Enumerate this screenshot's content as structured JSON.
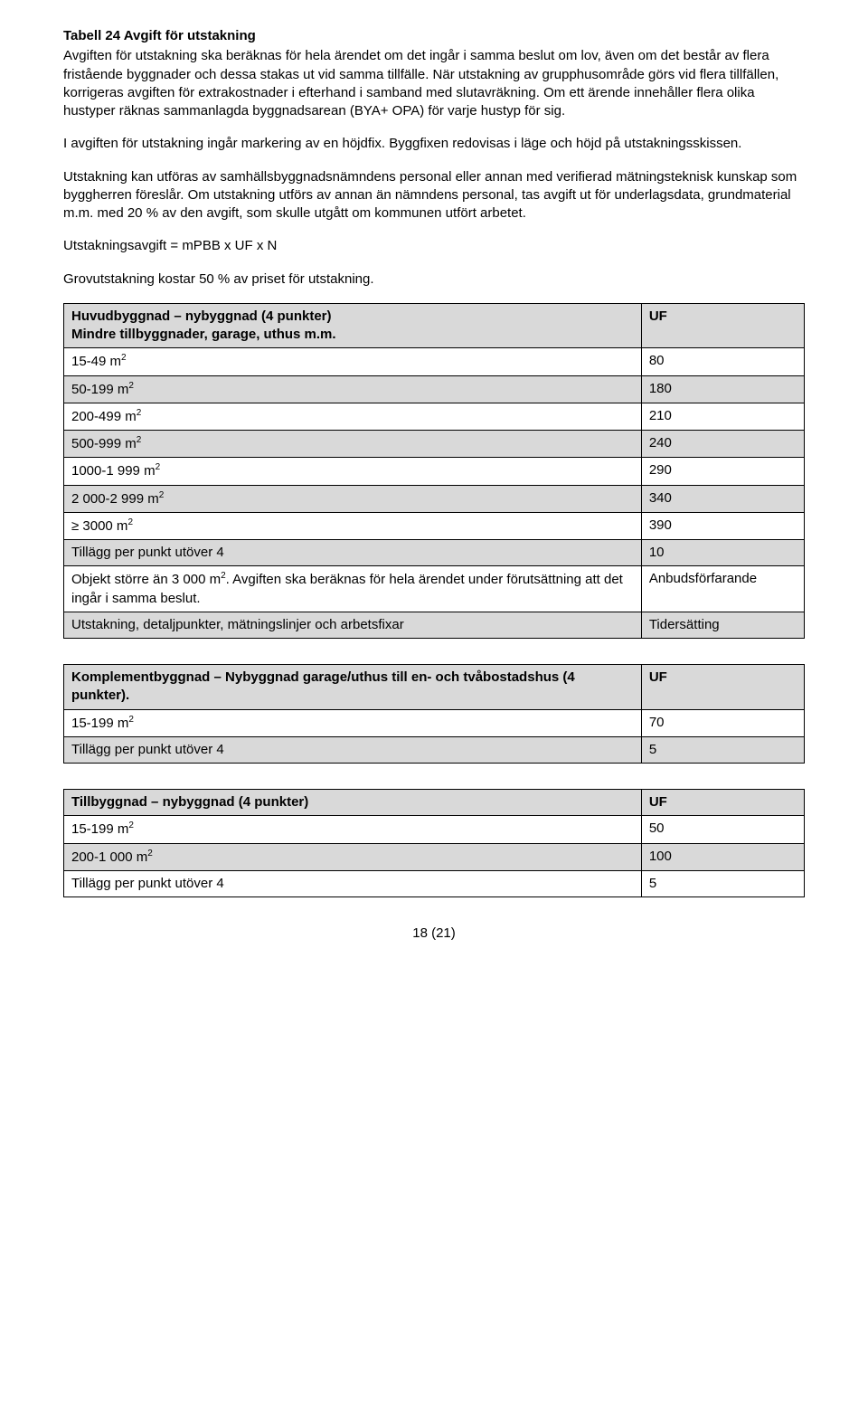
{
  "title": "Tabell 24 Avgift för utstakning",
  "paras": {
    "p1": "Avgiften för utstakning ska beräknas för hela ärendet om det ingår i samma beslut om lov, även om det består av flera fristående byggnader och dessa stakas ut vid samma tillfälle. När utstakning av grupphusområde görs vid flera tillfällen, korrigeras avgiften för extrakostnader i efterhand i samband med slutavräkning. Om ett ärende innehåller flera olika hustyper räknas sammanlagda byggnadsarean (BYA+ OPA) för varje hustyp för sig.",
    "p2": "I avgiften för utstakning ingår markering av en höjdfix. Byggfixen redovisas i läge och höjd på utstakningsskissen.",
    "p3": "Utstakning kan utföras av samhällsbyggnadsnämndens personal eller annan med verifierad mätningsteknisk kunskap som byggherren föreslår. Om utstakning utförs av annan än nämndens personal, tas avgift ut för underlagsdata, grundmaterial m.m. med 20 % av den avgift, som skulle utgått om kommunen utfört arbetet.",
    "p4": "Utstakningsavgift = mPBB x UF x N",
    "p5": "Grovutstakning kostar 50 % av priset för utstakning."
  },
  "table1": {
    "header": {
      "col1a": "Huvudbyggnad – nybyggnad (4 punkter)",
      "col1b": "Mindre tillbyggnader, garage, uthus m.m.",
      "col2": "UF"
    },
    "rows": [
      {
        "label": "15-49 m²",
        "value": "80",
        "grey": false
      },
      {
        "label": "50-199 m²",
        "value": "180",
        "grey": true
      },
      {
        "label": "200-499 m²",
        "value": "210",
        "grey": false
      },
      {
        "label": "500-999 m²",
        "value": "240",
        "grey": true
      },
      {
        "label": "1000-1 999 m²",
        "value": "290",
        "grey": false
      },
      {
        "label": "2 000-2 999 m²",
        "value": "340",
        "grey": true
      },
      {
        "label": "≥ 3000 m²",
        "value": "390",
        "grey": false
      },
      {
        "label": "Tillägg per punkt utöver 4",
        "value": "10",
        "grey": true
      },
      {
        "label": "Objekt större än 3 000 m². Avgiften ska beräknas för hela ärendet under förutsättning att det ingår i samma beslut.",
        "value": "Anbudsförfarande",
        "grey": false
      },
      {
        "label": "Utstakning, detaljpunkter, mätningslinjer och arbetsfixar",
        "value": "Tidersätting",
        "grey": true
      }
    ]
  },
  "table2": {
    "header": {
      "col1": "Komplementbyggnad – Nybyggnad garage/uthus till en- och tvåbostadshus (4 punkter).",
      "col2": "UF"
    },
    "rows": [
      {
        "label": "15-199 m²",
        "value": "70",
        "grey": false
      },
      {
        "label": "Tillägg per punkt utöver 4",
        "value": "5",
        "grey": true
      }
    ]
  },
  "table3": {
    "header": {
      "col1": "Tillbyggnad – nybyggnad (4 punkter)",
      "col2": "UF"
    },
    "rows": [
      {
        "label": "15-199 m²",
        "value": "50",
        "grey": false
      },
      {
        "label": "200-1 000 m²",
        "value": "100",
        "grey": true
      },
      {
        "label": "Tillägg per punkt utöver 4",
        "value": "5",
        "grey": false
      }
    ]
  },
  "footer": "18 (21)",
  "colors": {
    "row_alt_bg": "#d9d9d9",
    "text": "#000000",
    "bg": "#ffffff",
    "border": "#000000"
  },
  "font": {
    "family": "Arial",
    "size_pt": 11
  }
}
